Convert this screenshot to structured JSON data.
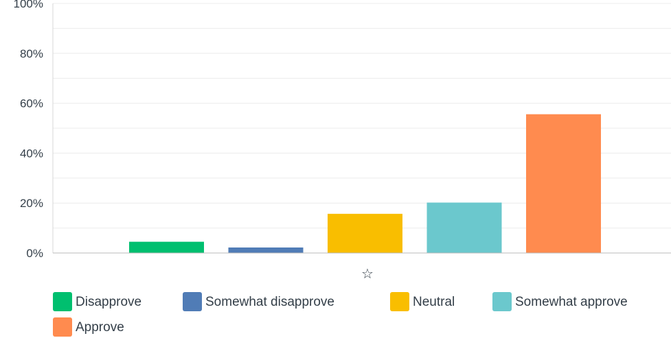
{
  "chart_data": {
    "type": "bar",
    "categories": [
      "Disapprove",
      "Somewhat disapprove",
      "Neutral",
      "Somewhat approve",
      "Approve"
    ],
    "series": [
      {
        "values": [
          4.5,
          2.2,
          15.7,
          20.2,
          55.6
        ],
        "colors": [
          "#00bf6f",
          "#507cb6",
          "#f9be00",
          "#6bc8cd",
          "#ff8b4f"
        ]
      }
    ],
    "ylim": [
      0,
      100
    ],
    "yticks": [
      0,
      20,
      40,
      60,
      80,
      100
    ],
    "ytick_labels": [
      "0%",
      "20%",
      "40%",
      "60%",
      "80%",
      "100%"
    ],
    "grid": true,
    "legend_position": "bottom",
    "legend": [
      "Disapprove",
      "Somewhat disapprove",
      "Neutral",
      "Somewhat approve",
      "Approve"
    ],
    "x_axis_icon": "star-outline-icon",
    "x_axis_symbol": "☆"
  }
}
